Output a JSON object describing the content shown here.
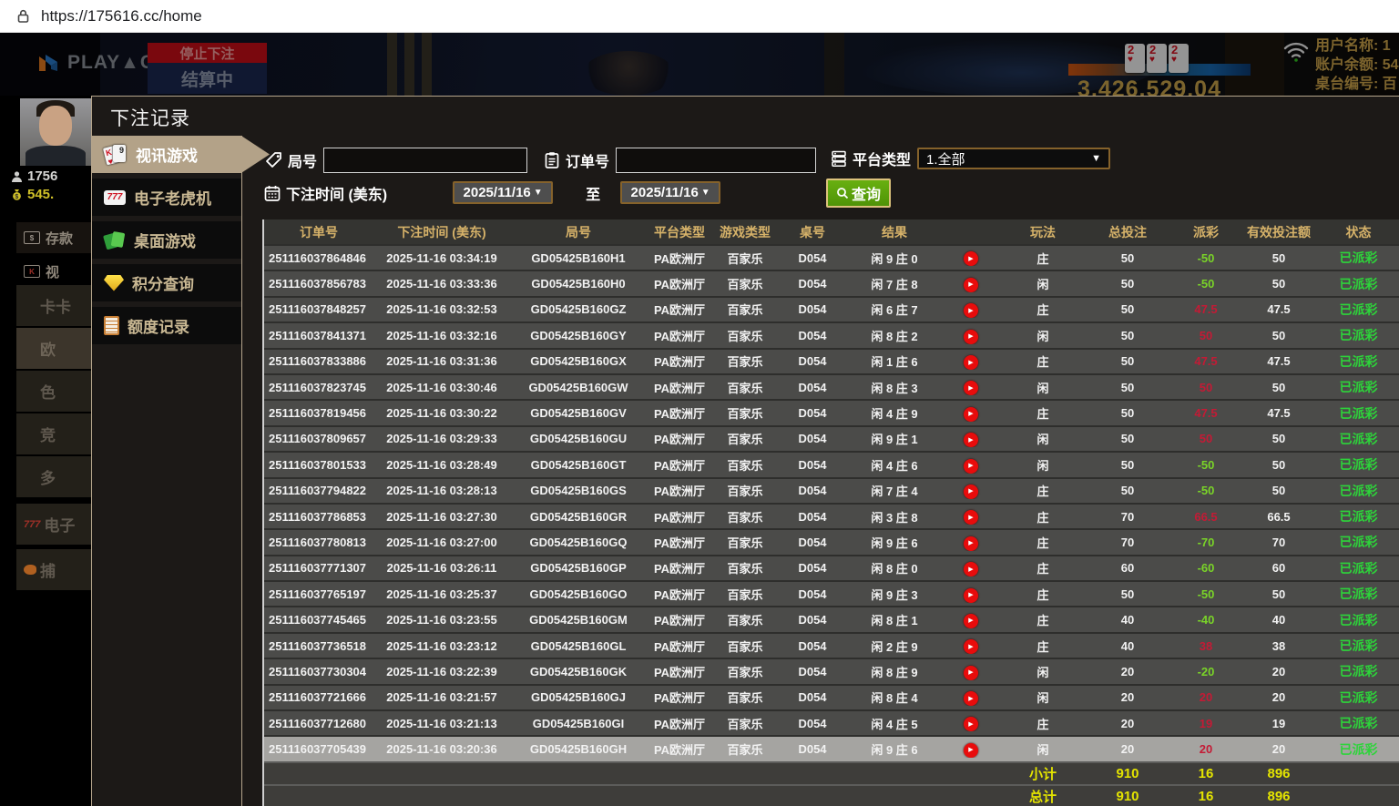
{
  "browser": {
    "url": "https://175616.cc/home"
  },
  "background": {
    "logo_text": "PLAYACE",
    "stop_banner": "停止下注",
    "settling": "结算中",
    "jackpot": "3,426,529.04",
    "cards": [
      "2",
      "2",
      "2"
    ],
    "user_label": "用户名称: 1",
    "balance_label": "账户余额: 54",
    "table_label": "桌台编号: 百",
    "left_sidebar": {
      "username": "1756",
      "balance": "545.",
      "deposit": "存款",
      "video": "视",
      "nav_items": [
        "卡卡",
        "欧",
        "色",
        "竞",
        "多"
      ],
      "slots": "电子",
      "fishing": "捕"
    }
  },
  "modal": {
    "title": "下注记录",
    "menu": [
      {
        "label": "视讯游戏",
        "active": true
      },
      {
        "label": "电子老虎机",
        "active": false
      },
      {
        "label": "桌面游戏",
        "active": false
      },
      {
        "label": "积分查询",
        "active": false
      },
      {
        "label": "额度记录",
        "active": false
      }
    ],
    "filters": {
      "round_label": "局号",
      "round_value": "",
      "order_label": "订单号",
      "order_value": "",
      "platform_label": "平台类型",
      "platform_value": "1.全部",
      "time_label": "下注时间 (美东)",
      "date_from": "2025/11/16",
      "to_label": "至",
      "date_to": "2025/11/16",
      "search_label": "查询"
    },
    "table": {
      "headers": [
        "订单号",
        "下注时间 (美东)",
        "局号",
        "平台类型",
        "游戏类型",
        "桌号",
        "结果",
        "",
        "玩法",
        "总投注",
        "派彩",
        "有效投注额",
        "状态"
      ],
      "selected_row_index": 19,
      "rows": [
        {
          "order": "251116037864846",
          "time": "2025-11-16 03:34:19",
          "round": "GD05425B160H1",
          "platform": "PA欧洲厅",
          "game": "百家乐",
          "table": "D054",
          "result": "闲 9 庄 0",
          "play": "庄",
          "bet": "50",
          "payout": "-50",
          "valid": "50",
          "status": "已派彩"
        },
        {
          "order": "251116037856783",
          "time": "2025-11-16 03:33:36",
          "round": "GD05425B160H0",
          "platform": "PA欧洲厅",
          "game": "百家乐",
          "table": "D054",
          "result": "闲 7 庄 8",
          "play": "闲",
          "bet": "50",
          "payout": "-50",
          "valid": "50",
          "status": "已派彩"
        },
        {
          "order": "251116037848257",
          "time": "2025-11-16 03:32:53",
          "round": "GD05425B160GZ",
          "platform": "PA欧洲厅",
          "game": "百家乐",
          "table": "D054",
          "result": "闲 6 庄 7",
          "play": "庄",
          "bet": "50",
          "payout": "47.5",
          "valid": "47.5",
          "status": "已派彩"
        },
        {
          "order": "251116037841371",
          "time": "2025-11-16 03:32:16",
          "round": "GD05425B160GY",
          "platform": "PA欧洲厅",
          "game": "百家乐",
          "table": "D054",
          "result": "闲 8 庄 2",
          "play": "闲",
          "bet": "50",
          "payout": "50",
          "valid": "50",
          "status": "已派彩"
        },
        {
          "order": "251116037833886",
          "time": "2025-11-16 03:31:36",
          "round": "GD05425B160GX",
          "platform": "PA欧洲厅",
          "game": "百家乐",
          "table": "D054",
          "result": "闲 1 庄 6",
          "play": "庄",
          "bet": "50",
          "payout": "47.5",
          "valid": "47.5",
          "status": "已派彩"
        },
        {
          "order": "251116037823745",
          "time": "2025-11-16 03:30:46",
          "round": "GD05425B160GW",
          "platform": "PA欧洲厅",
          "game": "百家乐",
          "table": "D054",
          "result": "闲 8 庄 3",
          "play": "闲",
          "bet": "50",
          "payout": "50",
          "valid": "50",
          "status": "已派彩"
        },
        {
          "order": "251116037819456",
          "time": "2025-11-16 03:30:22",
          "round": "GD05425B160GV",
          "platform": "PA欧洲厅",
          "game": "百家乐",
          "table": "D054",
          "result": "闲 4 庄 9",
          "play": "庄",
          "bet": "50",
          "payout": "47.5",
          "valid": "47.5",
          "status": "已派彩"
        },
        {
          "order": "251116037809657",
          "time": "2025-11-16 03:29:33",
          "round": "GD05425B160GU",
          "platform": "PA欧洲厅",
          "game": "百家乐",
          "table": "D054",
          "result": "闲 9 庄 1",
          "play": "闲",
          "bet": "50",
          "payout": "50",
          "valid": "50",
          "status": "已派彩"
        },
        {
          "order": "251116037801533",
          "time": "2025-11-16 03:28:49",
          "round": "GD05425B160GT",
          "platform": "PA欧洲厅",
          "game": "百家乐",
          "table": "D054",
          "result": "闲 4 庄 6",
          "play": "闲",
          "bet": "50",
          "payout": "-50",
          "valid": "50",
          "status": "已派彩"
        },
        {
          "order": "251116037794822",
          "time": "2025-11-16 03:28:13",
          "round": "GD05425B160GS",
          "platform": "PA欧洲厅",
          "game": "百家乐",
          "table": "D054",
          "result": "闲 7 庄 4",
          "play": "庄",
          "bet": "50",
          "payout": "-50",
          "valid": "50",
          "status": "已派彩"
        },
        {
          "order": "251116037786853",
          "time": "2025-11-16 03:27:30",
          "round": "GD05425B160GR",
          "platform": "PA欧洲厅",
          "game": "百家乐",
          "table": "D054",
          "result": "闲 3 庄 8",
          "play": "庄",
          "bet": "70",
          "payout": "66.5",
          "valid": "66.5",
          "status": "已派彩"
        },
        {
          "order": "251116037780813",
          "time": "2025-11-16 03:27:00",
          "round": "GD05425B160GQ",
          "platform": "PA欧洲厅",
          "game": "百家乐",
          "table": "D054",
          "result": "闲 9 庄 6",
          "play": "庄",
          "bet": "70",
          "payout": "-70",
          "valid": "70",
          "status": "已派彩"
        },
        {
          "order": "251116037771307",
          "time": "2025-11-16 03:26:11",
          "round": "GD05425B160GP",
          "platform": "PA欧洲厅",
          "game": "百家乐",
          "table": "D054",
          "result": "闲 8 庄 0",
          "play": "庄",
          "bet": "60",
          "payout": "-60",
          "valid": "60",
          "status": "已派彩"
        },
        {
          "order": "251116037765197",
          "time": "2025-11-16 03:25:37",
          "round": "GD05425B160GO",
          "platform": "PA欧洲厅",
          "game": "百家乐",
          "table": "D054",
          "result": "闲 9 庄 3",
          "play": "庄",
          "bet": "50",
          "payout": "-50",
          "valid": "50",
          "status": "已派彩"
        },
        {
          "order": "251116037745465",
          "time": "2025-11-16 03:23:55",
          "round": "GD05425B160GM",
          "platform": "PA欧洲厅",
          "game": "百家乐",
          "table": "D054",
          "result": "闲 8 庄 1",
          "play": "庄",
          "bet": "40",
          "payout": "-40",
          "valid": "40",
          "status": "已派彩"
        },
        {
          "order": "251116037736518",
          "time": "2025-11-16 03:23:12",
          "round": "GD05425B160GL",
          "platform": "PA欧洲厅",
          "game": "百家乐",
          "table": "D054",
          "result": "闲 2 庄 9",
          "play": "庄",
          "bet": "40",
          "payout": "38",
          "valid": "38",
          "status": "已派彩"
        },
        {
          "order": "251116037730304",
          "time": "2025-11-16 03:22:39",
          "round": "GD05425B160GK",
          "platform": "PA欧洲厅",
          "game": "百家乐",
          "table": "D054",
          "result": "闲 8 庄 9",
          "play": "闲",
          "bet": "20",
          "payout": "-20",
          "valid": "20",
          "status": "已派彩"
        },
        {
          "order": "251116037721666",
          "time": "2025-11-16 03:21:57",
          "round": "GD05425B160GJ",
          "platform": "PA欧洲厅",
          "game": "百家乐",
          "table": "D054",
          "result": "闲 8 庄 4",
          "play": "闲",
          "bet": "20",
          "payout": "20",
          "valid": "20",
          "status": "已派彩"
        },
        {
          "order": "251116037712680",
          "time": "2025-11-16 03:21:13",
          "round": "GD05425B160GI",
          "platform": "PA欧洲厅",
          "game": "百家乐",
          "table": "D054",
          "result": "闲 4 庄 5",
          "play": "庄",
          "bet": "20",
          "payout": "19",
          "valid": "19",
          "status": "已派彩"
        },
        {
          "order": "251116037705439",
          "time": "2025-11-16 03:20:36",
          "round": "GD05425B160GH",
          "platform": "PA欧洲厅",
          "game": "百家乐",
          "table": "D054",
          "result": "闲 9 庄 6",
          "play": "闲",
          "bet": "20",
          "payout": "20",
          "valid": "20",
          "status": "已派彩"
        }
      ],
      "subtotal": {
        "label": "小计",
        "bet": "910",
        "payout": "16",
        "valid": "896"
      },
      "total": {
        "label": "总计",
        "bet": "910",
        "payout": "16",
        "valid": "896"
      }
    }
  },
  "colors": {
    "payout_positive": "#c41a35",
    "payout_negative": "#7ad428",
    "status_green": "#2dd43a",
    "totals_yellow": "#e4e400",
    "header_gold": "#d6b269",
    "active_tab": "#b3a288",
    "query_button": "#55a00e"
  }
}
